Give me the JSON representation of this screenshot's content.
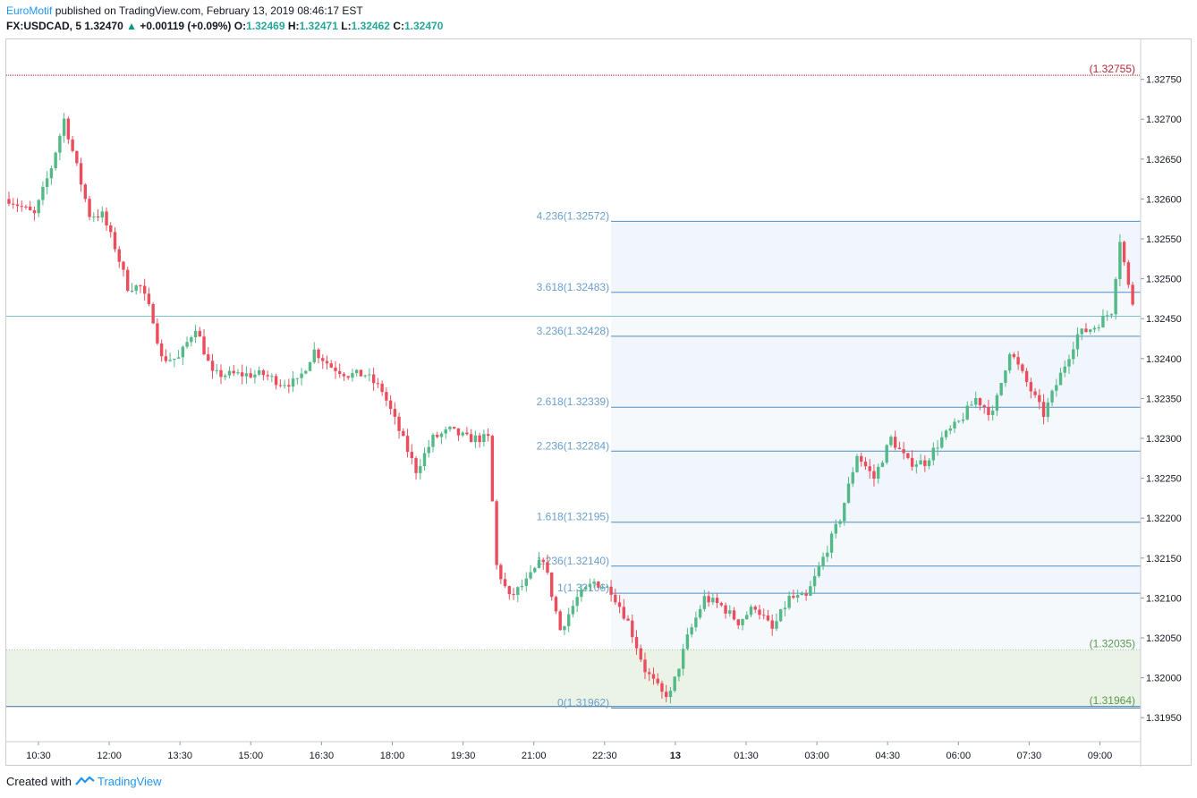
{
  "header": {
    "author": "EuroMotif",
    "published": "published on TradingView.com, February 13, 2019 08:46:17 EST",
    "symbol": "FX:USDCAD, 5",
    "last": "1.32470",
    "change_arrow": "▲",
    "change": "+0.00119 (+0.09%)",
    "o_label": "O:",
    "o_val": "1.32469",
    "h_label": "H:",
    "h_val": "1.32471",
    "l_label": "L:",
    "l_val": "1.32462",
    "c_label": "C:",
    "c_val": "1.32470"
  },
  "footer": {
    "created_with": "Created with",
    "brand": "TradingView"
  },
  "colors": {
    "up": "#53b987",
    "down": "#eb4d5c",
    "fib_line": "#4e8ec7",
    "fib_text": "#6a9fce",
    "fib_fill": "#f0f6fb",
    "red_level": "#b22833",
    "green_zone": "#eaf3e6",
    "green_text": "#5a9a4a"
  },
  "chart_data": {
    "type": "candlestick",
    "symbol": "FX:USDCAD",
    "interval": "5",
    "ylim": [
      1.3192,
      1.328
    ],
    "y_ticks": [
      "1.31950",
      "1.32000",
      "1.32050",
      "1.32100",
      "1.32150",
      "1.32200",
      "1.32250",
      "1.32300",
      "1.32350",
      "1.32400",
      "1.32450",
      "1.32500",
      "1.32550",
      "1.32600",
      "1.32650",
      "1.32700",
      "1.32750"
    ],
    "x_ticks": [
      "10:30",
      "12:00",
      "13:30",
      "15:00",
      "16:30",
      "18:00",
      "19:30",
      "21:00",
      "22:30",
      "13",
      "01:30",
      "03:00",
      "04:30",
      "06:00",
      "07:30",
      "09:00"
    ],
    "horizontal_line": 1.32453,
    "resistance": {
      "value": 1.32755,
      "label": "(1.32755)"
    },
    "support_zone": {
      "top": 1.32035,
      "bottom": 1.31964,
      "top_label": "(1.32035)",
      "bottom_label": "(1.31964)"
    },
    "fib_extension": [
      {
        "ratio": "0",
        "value": 1.31962,
        "label": "0(1.31962)"
      },
      {
        "ratio": "1",
        "value": 1.32106,
        "label": "1(1.32106)"
      },
      {
        "ratio": "1.236",
        "value": 1.3214,
        "label": "1.236(1.32140)"
      },
      {
        "ratio": "1.618",
        "value": 1.32195,
        "label": "1.618(1.32195)"
      },
      {
        "ratio": "2.236",
        "value": 1.32284,
        "label": "2.236(1.32284)"
      },
      {
        "ratio": "2.618",
        "value": 1.32339,
        "label": "2.618(1.32339)"
      },
      {
        "ratio": "3.236",
        "value": 1.32428,
        "label": "3.236(1.32428)"
      },
      {
        "ratio": "3.618",
        "value": 1.32483,
        "label": "3.618(1.32483)"
      },
      {
        "ratio": "4.236",
        "value": 1.32572,
        "label": "4.236(1.32572)"
      }
    ],
    "close_path": [
      [
        0,
        1.326
      ],
      [
        3,
        1.3259
      ],
      [
        6,
        1.3258
      ],
      [
        10,
        1.3264
      ],
      [
        13,
        1.327
      ],
      [
        16,
        1.3264
      ],
      [
        19,
        1.3258
      ],
      [
        22,
        1.3258
      ],
      [
        25,
        1.3254
      ],
      [
        28,
        1.3249
      ],
      [
        31,
        1.3249
      ],
      [
        34,
        1.3245
      ],
      [
        36,
        1.324
      ],
      [
        40,
        1.324
      ],
      [
        44,
        1.3244
      ],
      [
        48,
        1.3238
      ],
      [
        52,
        1.3238
      ],
      [
        56,
        1.3238
      ],
      [
        60,
        1.3238
      ],
      [
        64,
        1.3237
      ],
      [
        68,
        1.3237
      ],
      [
        72,
        1.3241
      ],
      [
        76,
        1.3239
      ],
      [
        80,
        1.3238
      ],
      [
        84,
        1.3238
      ],
      [
        88,
        1.3236
      ],
      [
        92,
        1.3231
      ],
      [
        96,
        1.3226
      ],
      [
        100,
        1.323
      ],
      [
        104,
        1.3231
      ],
      [
        108,
        1.323
      ],
      [
        111,
        1.323
      ],
      [
        113,
        1.323
      ],
      [
        115,
        1.3214
      ],
      [
        118,
        1.321
      ],
      [
        122,
        1.3212
      ],
      [
        126,
        1.3215
      ],
      [
        130,
        1.3206
      ],
      [
        134,
        1.321
      ],
      [
        138,
        1.3212
      ],
      [
        142,
        1.3211
      ],
      [
        146,
        1.3207
      ],
      [
        150,
        1.3201
      ],
      [
        154,
        1.3198
      ],
      [
        156,
        1.3198
      ],
      [
        160,
        1.3205
      ],
      [
        164,
        1.321
      ],
      [
        168,
        1.3209
      ],
      [
        172,
        1.3207
      ],
      [
        176,
        1.3209
      ],
      [
        180,
        1.3206
      ],
      [
        184,
        1.321
      ],
      [
        188,
        1.321
      ],
      [
        192,
        1.3215
      ],
      [
        196,
        1.322
      ],
      [
        200,
        1.3228
      ],
      [
        204,
        1.3225
      ],
      [
        208,
        1.323
      ],
      [
        212,
        1.3227
      ],
      [
        216,
        1.3227
      ],
      [
        220,
        1.323
      ],
      [
        224,
        1.3232
      ],
      [
        228,
        1.3235
      ],
      [
        232,
        1.3233
      ],
      [
        236,
        1.3241
      ],
      [
        240,
        1.3237
      ],
      [
        244,
        1.3233
      ],
      [
        248,
        1.3238
      ],
      [
        252,
        1.3243
      ],
      [
        256,
        1.3244
      ],
      [
        260,
        1.3246
      ],
      [
        262,
        1.3255
      ],
      [
        264,
        1.3249
      ],
      [
        265,
        1.3247
      ]
    ]
  }
}
